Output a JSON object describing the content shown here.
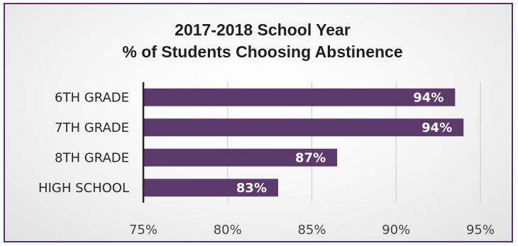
{
  "chart_data": {
    "type": "bar",
    "orientation": "horizontal",
    "title": "2017-2018 School Year",
    "subtitle": "% of Students Choosing Abstinence",
    "categories": [
      "6TH GRADE",
      "7TH GRADE",
      "8TH GRADE",
      "HIGH SCHOOL"
    ],
    "values": [
      93.5,
      94,
      86.5,
      83
    ],
    "data_labels": [
      "94%",
      "94%",
      "87%",
      "83%"
    ],
    "xlim": [
      75,
      95
    ],
    "x_ticks": [
      75,
      80,
      85,
      90,
      95
    ],
    "x_tick_labels": [
      "75%",
      "80%",
      "85%",
      "90%",
      "95%"
    ],
    "grid": true,
    "legend": "none",
    "bar_color": "#5d3a6c",
    "frame_color": "#5a2d6e"
  }
}
